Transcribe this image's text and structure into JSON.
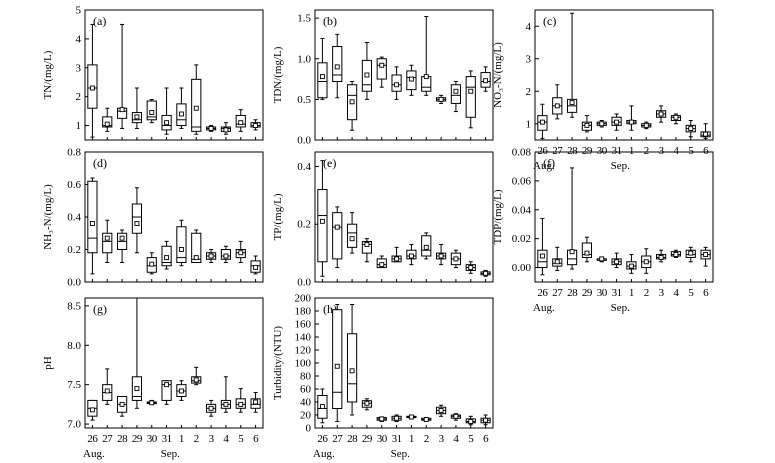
{
  "figure": {
    "x_categories": [
      "26",
      "27",
      "28",
      "29",
      "30",
      "31",
      "1",
      "2",
      "3",
      "4",
      "5",
      "6"
    ],
    "month_labels": [
      "Aug.",
      "Sep."
    ]
  },
  "chart_data": [
    {
      "type": "box",
      "panel": "(a)",
      "ylabel": "TN/(mg/L)",
      "ylim": [
        0.5,
        5
      ],
      "yticks": [
        1,
        2,
        3,
        4,
        5
      ],
      "categories": [
        "26",
        "27",
        "28",
        "29",
        "30",
        "31",
        "1",
        "2",
        "3",
        "4",
        "5",
        "6"
      ],
      "boxes": [
        {
          "min": 0.6,
          "q1": 1.6,
          "median": 2.3,
          "q3": 3.1,
          "max": 4.5,
          "mean": 2.3
        },
        {
          "min": 0.8,
          "q1": 0.95,
          "median": 1.0,
          "q3": 1.3,
          "max": 1.6,
          "mean": 1.05
        },
        {
          "min": 0.9,
          "q1": 1.25,
          "median": 1.5,
          "q3": 1.6,
          "max": 4.5,
          "mean": 1.55
        },
        {
          "min": 0.9,
          "q1": 1.1,
          "median": 1.2,
          "q3": 1.45,
          "max": 2.3,
          "mean": 1.3
        },
        {
          "min": 1.1,
          "q1": 1.2,
          "median": 1.3,
          "q3": 1.85,
          "max": 1.9,
          "mean": 1.45
        },
        {
          "min": 0.7,
          "q1": 0.85,
          "median": 1.0,
          "q3": 1.35,
          "max": 2.3,
          "mean": 1.1
        },
        {
          "min": 0.9,
          "q1": 1.0,
          "median": 1.2,
          "q3": 1.75,
          "max": 2.3,
          "mean": 1.4
        },
        {
          "min": 0.7,
          "q1": 0.8,
          "median": 0.95,
          "q3": 2.6,
          "max": 3.1,
          "mean": 1.6
        },
        {
          "min": 0.8,
          "q1": 0.85,
          "median": 0.9,
          "q3": 0.95,
          "max": 1.0,
          "mean": 0.9
        },
        {
          "min": 0.7,
          "q1": 0.8,
          "median": 0.9,
          "q3": 0.95,
          "max": 1.1,
          "mean": 0.85
        },
        {
          "min": 0.8,
          "q1": 0.95,
          "median": 1.05,
          "q3": 1.35,
          "max": 1.55,
          "mean": 1.1
        },
        {
          "min": 0.85,
          "q1": 0.95,
          "median": 1.0,
          "q3": 1.1,
          "max": 1.2,
          "mean": 1.0
        }
      ]
    },
    {
      "type": "box",
      "panel": "(b)",
      "ylabel": "TDN/(mg/L)",
      "ylim": [
        0,
        1.6
      ],
      "yticks": [
        0.0,
        0.5,
        1.0,
        1.5
      ],
      "categories": [
        "26",
        "27",
        "28",
        "29",
        "30",
        "31",
        "1",
        "2",
        "3",
        "4",
        "5",
        "6"
      ],
      "boxes": [
        {
          "min": 0.5,
          "q1": 0.52,
          "median": 0.72,
          "q3": 0.95,
          "max": 1.25,
          "mean": 0.78
        },
        {
          "min": 0.52,
          "q1": 0.72,
          "median": 0.8,
          "q3": 1.15,
          "max": 1.3,
          "mean": 0.9
        },
        {
          "min": 0.12,
          "q1": 0.25,
          "median": 0.55,
          "q3": 0.68,
          "max": 0.72,
          "mean": 0.47
        },
        {
          "min": 0.5,
          "q1": 0.6,
          "median": 0.68,
          "q3": 0.98,
          "max": 1.2,
          "mean": 0.8
        },
        {
          "min": 0.65,
          "q1": 0.75,
          "median": 0.92,
          "q3": 1.0,
          "max": 1.02,
          "mean": 0.92
        },
        {
          "min": 0.5,
          "q1": 0.6,
          "median": 0.68,
          "q3": 0.8,
          "max": 0.9,
          "mean": 0.68
        },
        {
          "min": 0.55,
          "q1": 0.62,
          "median": 0.77,
          "q3": 0.85,
          "max": 0.92,
          "mean": 0.75
        },
        {
          "min": 0.55,
          "q1": 0.6,
          "median": 0.65,
          "q3": 0.78,
          "max": 1.52,
          "mean": 0.78
        },
        {
          "min": 0.45,
          "q1": 0.48,
          "median": 0.5,
          "q3": 0.52,
          "max": 0.55,
          "mean": 0.5
        },
        {
          "min": 0.35,
          "q1": 0.45,
          "median": 0.55,
          "q3": 0.68,
          "max": 0.72,
          "mean": 0.6
        },
        {
          "min": 0.15,
          "q1": 0.28,
          "median": 0.65,
          "q3": 0.78,
          "max": 0.85,
          "mean": 0.6
        },
        {
          "min": 0.6,
          "q1": 0.65,
          "median": 0.72,
          "q3": 0.83,
          "max": 0.9,
          "mean": 0.73
        }
      ]
    },
    {
      "type": "box",
      "panel": "(c)",
      "ylabel": "NO₃-N/(mg/L)",
      "ylim": [
        0.5,
        4.5
      ],
      "yticks": [
        1,
        2,
        3,
        4
      ],
      "categories": [
        "26",
        "27",
        "28",
        "29",
        "30",
        "31",
        "1",
        "2",
        "3",
        "4",
        "5",
        "6"
      ],
      "boxes": [
        {
          "min": 0.55,
          "q1": 0.8,
          "median": 1.05,
          "q3": 1.25,
          "max": 1.6,
          "mean": 1.05
        },
        {
          "min": 1.15,
          "q1": 1.3,
          "median": 1.55,
          "q3": 1.8,
          "max": 2.2,
          "mean": 1.55
        },
        {
          "min": 1.2,
          "q1": 1.35,
          "median": 1.55,
          "q3": 1.75,
          "max": 4.4,
          "mean": 1.65
        },
        {
          "min": 0.75,
          "q1": 0.8,
          "median": 0.95,
          "q3": 1.05,
          "max": 1.25,
          "mean": 0.95
        },
        {
          "min": 0.9,
          "q1": 0.95,
          "median": 1.0,
          "q3": 1.05,
          "max": 1.1,
          "mean": 1.0
        },
        {
          "min": 0.8,
          "q1": 0.95,
          "median": 1.05,
          "q3": 1.2,
          "max": 1.3,
          "mean": 1.05
        },
        {
          "min": 0.8,
          "q1": 1.0,
          "median": 1.05,
          "q3": 1.1,
          "max": 1.55,
          "mean": 1.05
        },
        {
          "min": 0.85,
          "q1": 0.9,
          "median": 0.95,
          "q3": 1.0,
          "max": 1.05,
          "mean": 0.95
        },
        {
          "min": 1.05,
          "q1": 1.2,
          "median": 1.3,
          "q3": 1.4,
          "max": 1.55,
          "mean": 1.3
        },
        {
          "min": 1.0,
          "q1": 1.1,
          "median": 1.2,
          "q3": 1.25,
          "max": 1.3,
          "mean": 1.2
        },
        {
          "min": 0.6,
          "q1": 0.75,
          "median": 0.85,
          "q3": 0.95,
          "max": 1.1,
          "mean": 0.85
        },
        {
          "min": 0.55,
          "q1": 0.6,
          "median": 0.65,
          "q3": 0.75,
          "max": 1.0,
          "mean": 0.68
        }
      ]
    },
    {
      "type": "box",
      "panel": "(d)",
      "ylabel": "NH₃-N/(mg/L)",
      "ylim": [
        0,
        0.8
      ],
      "yticks": [
        0.0,
        0.2,
        0.4,
        0.6,
        0.8
      ],
      "categories": [
        "26",
        "27",
        "28",
        "29",
        "30",
        "31",
        "1",
        "2",
        "3",
        "4",
        "5",
        "6"
      ],
      "boxes": [
        {
          "min": 0.05,
          "q1": 0.18,
          "median": 0.27,
          "q3": 0.62,
          "max": 0.64,
          "mean": 0.36
        },
        {
          "min": 0.12,
          "q1": 0.18,
          "median": 0.25,
          "q3": 0.3,
          "max": 0.38,
          "mean": 0.27
        },
        {
          "min": 0.12,
          "q1": 0.2,
          "median": 0.25,
          "q3": 0.3,
          "max": 0.32,
          "mean": 0.27
        },
        {
          "min": 0.18,
          "q1": 0.3,
          "median": 0.4,
          "q3": 0.48,
          "max": 0.58,
          "mean": 0.36
        },
        {
          "min": 0.05,
          "q1": 0.06,
          "median": 0.1,
          "q3": 0.15,
          "max": 0.18,
          "mean": 0.11
        },
        {
          "min": 0.08,
          "q1": 0.1,
          "median": 0.12,
          "q3": 0.22,
          "max": 0.25,
          "mean": 0.15
        },
        {
          "min": 0.1,
          "q1": 0.12,
          "median": 0.15,
          "q3": 0.34,
          "max": 0.38,
          "mean": 0.2
        },
        {
          "min": 0.12,
          "q1": 0.12,
          "median": 0.14,
          "q3": 0.3,
          "max": 0.32,
          "mean": 0.15
        },
        {
          "min": 0.12,
          "q1": 0.14,
          "median": 0.16,
          "q3": 0.18,
          "max": 0.2,
          "mean": 0.16
        },
        {
          "min": 0.12,
          "q1": 0.14,
          "median": 0.16,
          "q3": 0.2,
          "max": 0.22,
          "mean": 0.16
        },
        {
          "min": 0.12,
          "q1": 0.15,
          "median": 0.18,
          "q3": 0.2,
          "max": 0.25,
          "mean": 0.18
        },
        {
          "min": 0.05,
          "q1": 0.06,
          "median": 0.1,
          "q3": 0.13,
          "max": 0.16,
          "mean": 0.09
        }
      ]
    },
    {
      "type": "box",
      "panel": "(e)",
      "ylabel": "TP/(mg/L)",
      "ylim": [
        0,
        0.45
      ],
      "yticks": [
        0.0,
        0.2,
        0.4
      ],
      "categories": [
        "26",
        "27",
        "28",
        "29",
        "30",
        "31",
        "1",
        "2",
        "3",
        "4",
        "5",
        "6"
      ],
      "boxes": [
        {
          "min": 0.02,
          "q1": 0.07,
          "median": 0.23,
          "q3": 0.32,
          "max": 0.42,
          "mean": 0.21
        },
        {
          "min": 0.05,
          "q1": 0.08,
          "median": 0.19,
          "q3": 0.24,
          "max": 0.26,
          "mean": 0.19
        },
        {
          "min": 0.1,
          "q1": 0.12,
          "median": 0.17,
          "q3": 0.2,
          "max": 0.24,
          "mean": 0.15
        },
        {
          "min": 0.07,
          "q1": 0.1,
          "median": 0.13,
          "q3": 0.14,
          "max": 0.15,
          "mean": 0.13
        },
        {
          "min": 0.05,
          "q1": 0.05,
          "median": 0.06,
          "q3": 0.08,
          "max": 0.09,
          "mean": 0.06
        },
        {
          "min": 0.07,
          "q1": 0.07,
          "median": 0.08,
          "q3": 0.09,
          "max": 0.12,
          "mean": 0.08
        },
        {
          "min": 0.06,
          "q1": 0.08,
          "median": 0.09,
          "q3": 0.11,
          "max": 0.13,
          "mean": 0.09
        },
        {
          "min": 0.08,
          "q1": 0.09,
          "median": 0.11,
          "q3": 0.16,
          "max": 0.17,
          "mean": 0.12
        },
        {
          "min": 0.06,
          "q1": 0.08,
          "median": 0.09,
          "q3": 0.1,
          "max": 0.13,
          "mean": 0.09
        },
        {
          "min": 0.05,
          "q1": 0.06,
          "median": 0.08,
          "q3": 0.1,
          "max": 0.11,
          "mean": 0.08
        },
        {
          "min": 0.03,
          "q1": 0.04,
          "median": 0.05,
          "q3": 0.06,
          "max": 0.07,
          "mean": 0.05
        },
        {
          "min": 0.02,
          "q1": 0.025,
          "median": 0.03,
          "q3": 0.035,
          "max": 0.04,
          "mean": 0.03
        }
      ]
    },
    {
      "type": "box",
      "panel": "(f)",
      "ylabel": "TDP/(mg/L)",
      "ylim": [
        -0.01,
        0.08
      ],
      "yticks": [
        0.0,
        0.02,
        0.04,
        0.06,
        0.08
      ],
      "categories": [
        "26",
        "27",
        "28",
        "29",
        "30",
        "31",
        "1",
        "2",
        "3",
        "4",
        "5",
        "6"
      ],
      "boxes": [
        {
          "min": -0.005,
          "q1": 0.0,
          "median": 0.004,
          "q3": 0.012,
          "max": 0.034,
          "mean": 0.008
        },
        {
          "min": -0.002,
          "q1": 0.001,
          "median": 0.003,
          "q3": 0.006,
          "max": 0.014,
          "mean": 0.004
        },
        {
          "min": -0.001,
          "q1": 0.002,
          "median": 0.006,
          "q3": 0.012,
          "max": 0.069,
          "mean": 0.011
        },
        {
          "min": 0.004,
          "q1": 0.007,
          "median": 0.009,
          "q3": 0.017,
          "max": 0.021,
          "mean": 0.01
        },
        {
          "min": 0.004,
          "q1": 0.005,
          "median": 0.006,
          "q3": 0.006,
          "max": 0.007,
          "mean": 0.006
        },
        {
          "min": 0.0,
          "q1": 0.002,
          "median": 0.004,
          "q3": 0.006,
          "max": 0.01,
          "mean": 0.004
        },
        {
          "min": -0.004,
          "q1": -0.001,
          "median": 0.001,
          "q3": 0.004,
          "max": 0.009,
          "mean": 0.001
        },
        {
          "min": -0.004,
          "q1": 0.0,
          "median": 0.004,
          "q3": 0.008,
          "max": 0.013,
          "mean": 0.004
        },
        {
          "min": 0.004,
          "q1": 0.006,
          "median": 0.007,
          "q3": 0.009,
          "max": 0.012,
          "mean": 0.007
        },
        {
          "min": 0.007,
          "q1": 0.008,
          "median": 0.009,
          "q3": 0.011,
          "max": 0.012,
          "mean": 0.009
        },
        {
          "min": 0.004,
          "q1": 0.007,
          "median": 0.009,
          "q3": 0.012,
          "max": 0.014,
          "mean": 0.01
        },
        {
          "min": 0.001,
          "q1": 0.006,
          "median": 0.009,
          "q3": 0.012,
          "max": 0.014,
          "mean": 0.009
        }
      ]
    },
    {
      "type": "box",
      "panel": "(g)",
      "ylabel": "pH",
      "ylim": [
        6.95,
        8.6
      ],
      "yticks": [
        7.0,
        7.5,
        8.0,
        8.5
      ],
      "categories": [
        "26",
        "27",
        "28",
        "29",
        "30",
        "31",
        "1",
        "2",
        "3",
        "4",
        "5",
        "6"
      ],
      "boxes": [
        {
          "min": 7.05,
          "q1": 7.1,
          "median": 7.2,
          "q3": 7.3,
          "max": 7.3,
          "mean": 7.18
        },
        {
          "min": 7.25,
          "q1": 7.3,
          "median": 7.4,
          "q3": 7.5,
          "max": 7.7,
          "mean": 7.42
        },
        {
          "min": 7.1,
          "q1": 7.15,
          "median": 7.25,
          "q3": 7.35,
          "max": 7.35,
          "mean": 7.25
        },
        {
          "min": 7.2,
          "q1": 7.3,
          "median": 7.35,
          "q3": 7.6,
          "max": 8.6,
          "mean": 7.45
        },
        {
          "min": 7.25,
          "q1": 7.26,
          "median": 7.27,
          "q3": 7.28,
          "max": 7.3,
          "mean": 7.27
        },
        {
          "min": 7.25,
          "q1": 7.3,
          "median": 7.5,
          "q3": 7.55,
          "max": 7.55,
          "mean": 7.5
        },
        {
          "min": 7.3,
          "q1": 7.35,
          "median": 7.42,
          "q3": 7.5,
          "max": 7.55,
          "mean": 7.42
        },
        {
          "min": 7.5,
          "q1": 7.52,
          "median": 7.55,
          "q3": 7.6,
          "max": 7.72,
          "mean": 7.56
        },
        {
          "min": 7.1,
          "q1": 7.15,
          "median": 7.2,
          "q3": 7.25,
          "max": 7.3,
          "mean": 7.2
        },
        {
          "min": 7.15,
          "q1": 7.2,
          "median": 7.25,
          "q3": 7.3,
          "max": 7.6,
          "mean": 7.25
        },
        {
          "min": 7.15,
          "q1": 7.2,
          "median": 7.25,
          "q3": 7.32,
          "max": 7.45,
          "mean": 7.25
        },
        {
          "min": 7.15,
          "q1": 7.2,
          "median": 7.25,
          "q3": 7.32,
          "max": 7.4,
          "mean": 7.28
        }
      ]
    },
    {
      "type": "box",
      "panel": "(h)",
      "ylabel": "Turbidity/(NTU)",
      "ylim": [
        0,
        200
      ],
      "yticks": [
        0,
        20,
        40,
        60,
        80,
        100,
        120,
        140,
        160,
        180,
        200
      ],
      "categories": [
        "26",
        "27",
        "28",
        "29",
        "30",
        "31",
        "1",
        "2",
        "3",
        "4",
        "5",
        "6"
      ],
      "boxes": [
        {
          "min": 8,
          "q1": 15,
          "median": 30,
          "q3": 50,
          "max": 60,
          "mean": 33
        },
        {
          "min": 10,
          "q1": 30,
          "median": 55,
          "q3": 182,
          "max": 190,
          "mean": 95
        },
        {
          "min": 20,
          "q1": 40,
          "median": 68,
          "q3": 145,
          "max": 190,
          "mean": 88
        },
        {
          "min": 28,
          "q1": 32,
          "median": 38,
          "q3": 42,
          "max": 45,
          "mean": 38
        },
        {
          "min": 10,
          "q1": 12,
          "median": 14,
          "q3": 16,
          "max": 17,
          "mean": 14
        },
        {
          "min": 10,
          "q1": 12,
          "median": 15,
          "q3": 18,
          "max": 20,
          "mean": 15
        },
        {
          "min": 14,
          "q1": 16,
          "median": 17,
          "q3": 18,
          "max": 20,
          "mean": 17
        },
        {
          "min": 10,
          "q1": 12,
          "median": 13,
          "q3": 15,
          "max": 16,
          "mean": 13
        },
        {
          "min": 18,
          "q1": 22,
          "median": 27,
          "q3": 32,
          "max": 35,
          "mean": 27
        },
        {
          "min": 12,
          "q1": 15,
          "median": 18,
          "q3": 20,
          "max": 22,
          "mean": 18
        },
        {
          "min": 5,
          "q1": 8,
          "median": 10,
          "q3": 14,
          "max": 18,
          "mean": 10
        },
        {
          "min": 5,
          "q1": 8,
          "median": 12,
          "q3": 15,
          "max": 20,
          "mean": 12
        }
      ]
    }
  ]
}
